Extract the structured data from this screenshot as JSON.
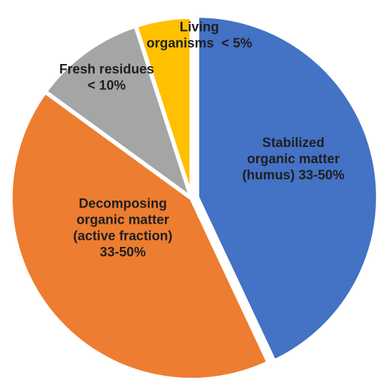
{
  "chart_data": {
    "type": "pie",
    "start_angle_deg": 0,
    "direction": "clockwise",
    "colors": {
      "stabilized": "#4472C4",
      "decomposing": "#ED7D31",
      "fresh": "#A5A5A5",
      "living": "#FFC000"
    },
    "slices": [
      {
        "key": "stabilized",
        "label_lines": [
          "Stabilized",
          "organic matter",
          "(humus) 33-50%"
        ],
        "value": 43,
        "exploded": true
      },
      {
        "key": "decomposing",
        "label_lines": [
          "Decomposing",
          "organic matter",
          "(active fraction)",
          "33-50%"
        ],
        "value": 42
      },
      {
        "key": "fresh",
        "label_lines": [
          "Fresh residues",
          "< 10%"
        ],
        "value": 10
      },
      {
        "key": "living",
        "label_lines": [
          "Living",
          "organisms  < 5%"
        ],
        "value": 5
      }
    ]
  }
}
